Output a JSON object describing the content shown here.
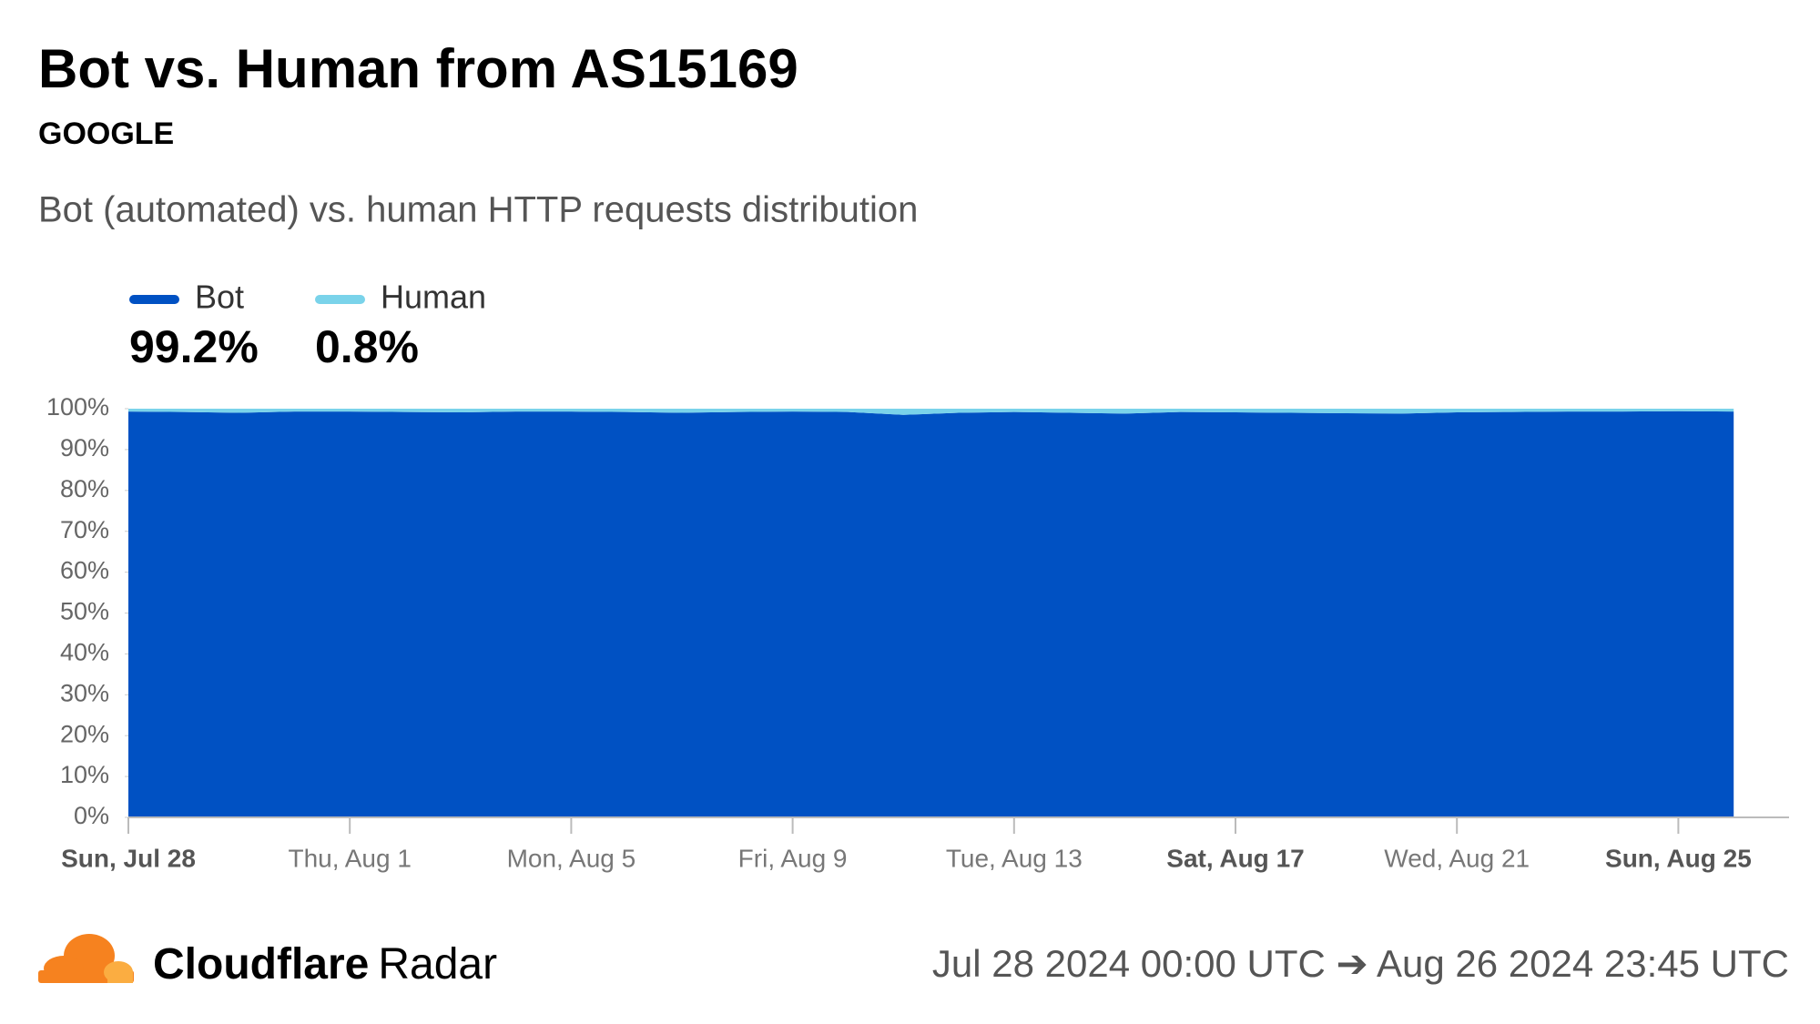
{
  "chart_data": {
    "type": "stacked-area",
    "title": "Bot vs. Human from AS15169",
    "subtitle": "GOOGLE",
    "description": "Bot (automated) vs. human HTTP requests distribution",
    "x": [
      "Jul 28",
      "Jul 29",
      "Jul 30",
      "Jul 31",
      "Aug 1",
      "Aug 2",
      "Aug 3",
      "Aug 4",
      "Aug 5",
      "Aug 6",
      "Aug 7",
      "Aug 8",
      "Aug 9",
      "Aug 10",
      "Aug 11",
      "Aug 12",
      "Aug 13",
      "Aug 14",
      "Aug 15",
      "Aug 16",
      "Aug 17",
      "Aug 18",
      "Aug 19",
      "Aug 20",
      "Aug 21",
      "Aug 22",
      "Aug 23",
      "Aug 24",
      "Aug 25",
      "Aug 26"
    ],
    "series": [
      {
        "name": "Bot",
        "color": "#0051c3",
        "summary": "99.2%",
        "values": [
          99.3,
          99.2,
          99.0,
          99.3,
          99.3,
          99.2,
          99.1,
          99.3,
          99.3,
          99.2,
          99.0,
          99.2,
          99.3,
          99.2,
          98.5,
          99.0,
          99.2,
          99.0,
          98.8,
          99.2,
          99.1,
          99.0,
          98.9,
          98.8,
          99.1,
          99.2,
          99.3,
          99.3,
          99.4,
          99.3
        ]
      },
      {
        "name": "Human",
        "color": "#7ad3ea",
        "summary": "0.8%",
        "values": [
          0.7,
          0.8,
          1.0,
          0.7,
          0.7,
          0.8,
          0.9,
          0.7,
          0.7,
          0.8,
          1.0,
          0.8,
          0.7,
          0.8,
          1.5,
          1.0,
          0.8,
          1.0,
          1.2,
          0.8,
          0.9,
          1.0,
          1.1,
          1.2,
          0.9,
          0.8,
          0.7,
          0.7,
          0.6,
          0.7
        ]
      }
    ],
    "ylim": [
      0,
      100
    ],
    "yticks": [
      {
        "value": 0,
        "label": "0%"
      },
      {
        "value": 10,
        "label": "10%"
      },
      {
        "value": 20,
        "label": "20%"
      },
      {
        "value": 30,
        "label": "30%"
      },
      {
        "value": 40,
        "label": "40%"
      },
      {
        "value": 50,
        "label": "50%"
      },
      {
        "value": 60,
        "label": "60%"
      },
      {
        "value": 70,
        "label": "70%"
      },
      {
        "value": 80,
        "label": "80%"
      },
      {
        "value": 90,
        "label": "90%"
      },
      {
        "value": 100,
        "label": "100%"
      }
    ],
    "xticks": [
      {
        "value": "Jul 28",
        "label": "Sun, Jul 28"
      },
      {
        "value": "Aug 1",
        "label": "Thu, Aug 1"
      },
      {
        "value": "Aug 5",
        "label": "Mon, Aug 5"
      },
      {
        "value": "Aug 9",
        "label": "Fri, Aug 9"
      },
      {
        "value": "Aug 13",
        "label": "Tue, Aug 13"
      },
      {
        "value": "Aug 17",
        "label": "Sat, Aug 17"
      },
      {
        "value": "Aug 21",
        "label": "Wed, Aug 21"
      },
      {
        "value": "Aug 25",
        "label": "Sun, Aug 25"
      }
    ]
  },
  "footer": {
    "brand": "Cloudflare",
    "product": "Radar",
    "range": "Jul 28 2024 00:00 UTC ➔ Aug 26 2024 23:45 UTC"
  }
}
